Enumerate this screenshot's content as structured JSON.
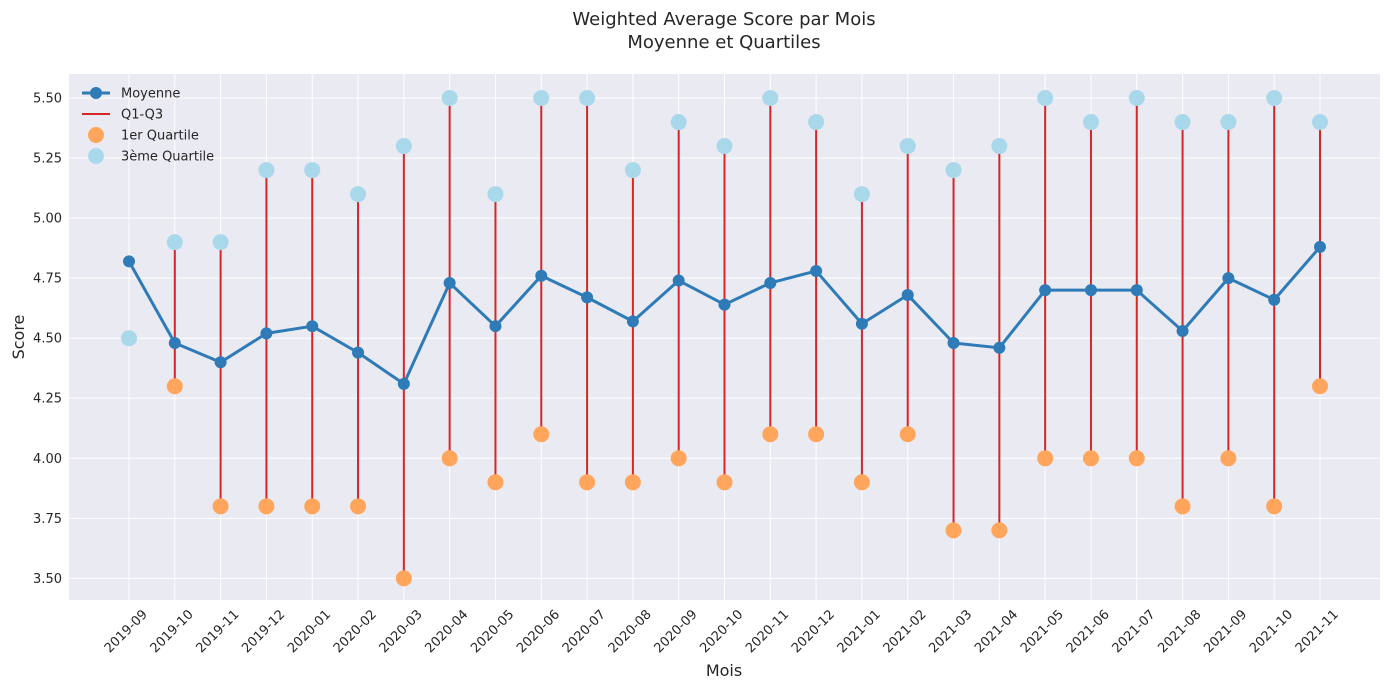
{
  "chart_data": {
    "type": "line",
    "title": "Weighted Average Score par Mois",
    "subtitle": "Moyenne et Quartiles",
    "xlabel": "Mois",
    "ylabel": "Score",
    "ylim": [
      3.41,
      5.6
    ],
    "yticks": [
      "3.50",
      "3.75",
      "4.00",
      "4.25",
      "4.50",
      "4.75",
      "5.00",
      "5.25",
      "5.50"
    ],
    "grid": true,
    "legend_position": "top-left",
    "colors": {
      "mean": "#2e7bb8",
      "range": "#d62728",
      "q1": "#ffa65c",
      "q3": "#a9d8ea",
      "background": "#eaeaf2"
    },
    "categories": [
      "2019-09",
      "2019-10",
      "2019-11",
      "2019-12",
      "2020-01",
      "2020-02",
      "2020-03",
      "2020-04",
      "2020-05",
      "2020-06",
      "2020-07",
      "2020-08",
      "2020-09",
      "2020-10",
      "2020-11",
      "2020-12",
      "2021-01",
      "2021-02",
      "2021-03",
      "2021-04",
      "2021-05",
      "2021-06",
      "2021-07",
      "2021-08",
      "2021-09",
      "2021-10",
      "2021-11"
    ],
    "series": [
      {
        "name": "Moyenne",
        "kind": "line",
        "values": [
          4.82,
          4.48,
          4.4,
          4.52,
          4.55,
          4.44,
          4.31,
          4.73,
          4.55,
          4.76,
          4.67,
          4.57,
          4.74,
          4.64,
          4.73,
          4.78,
          4.56,
          4.68,
          4.48,
          4.46,
          4.7,
          4.7,
          4.7,
          4.53,
          4.75,
          4.66,
          4.88
        ]
      },
      {
        "name": "Q1-Q3",
        "kind": "range"
      },
      {
        "name": "1er Quartile",
        "kind": "scatter",
        "values": [
          null,
          4.3,
          3.8,
          3.8,
          3.8,
          3.8,
          3.5,
          4.0,
          3.9,
          4.1,
          3.9,
          3.9,
          4.0,
          3.9,
          4.1,
          4.1,
          3.9,
          4.1,
          3.7,
          3.7,
          4.0,
          4.0,
          4.0,
          3.8,
          4.0,
          3.8,
          4.3
        ]
      },
      {
        "name": "3ème Quartile",
        "kind": "scatter",
        "values": [
          4.5,
          4.9,
          4.9,
          5.2,
          5.2,
          5.1,
          5.3,
          5.5,
          5.1,
          5.5,
          5.5,
          5.2,
          5.4,
          5.3,
          5.5,
          5.4,
          5.1,
          5.3,
          5.2,
          5.3,
          5.5,
          5.4,
          5.5,
          5.4,
          5.4,
          5.5,
          5.4
        ]
      }
    ]
  }
}
